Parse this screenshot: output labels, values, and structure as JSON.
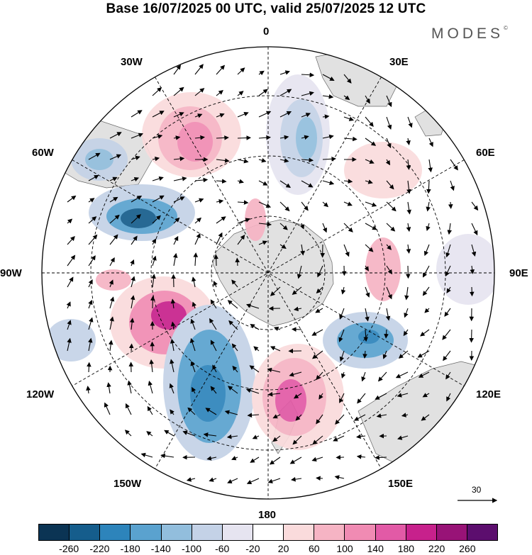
{
  "title": "Base 16/07/2025 00 UTC, valid 25/07/2025 12 UTC",
  "brand": "MODES",
  "brand_mark": "©",
  "longitude_labels": {
    "top": "0",
    "top_right": "30E",
    "right_upper": "60E",
    "right": "90E",
    "right_lower": "120E",
    "bottom_right": "150E",
    "bottom": "180",
    "bottom_left": "150W",
    "left_lower": "120W",
    "left": "90W",
    "left_upper": "60W",
    "top_left": "30W"
  },
  "reference_vector_label": "30",
  "colorbar": {
    "colors": [
      "#0b3454",
      "#155d8c",
      "#2d84bb",
      "#5aa2cf",
      "#92bedd",
      "#c4d2e7",
      "#e6e4f0",
      "#ffffff",
      "#fadbdc",
      "#f6b4c4",
      "#f08bb3",
      "#e25aa6",
      "#c7218c",
      "#981377",
      "#5c0e6e"
    ],
    "tick_labels": [
      "-260",
      "-220",
      "-180",
      "-140",
      "-100",
      "-60",
      "-20",
      "20",
      "60",
      "100",
      "140",
      "180",
      "220",
      "260"
    ]
  },
  "colors": {
    "land": "#e1e1e1",
    "grid": "#000000"
  }
}
